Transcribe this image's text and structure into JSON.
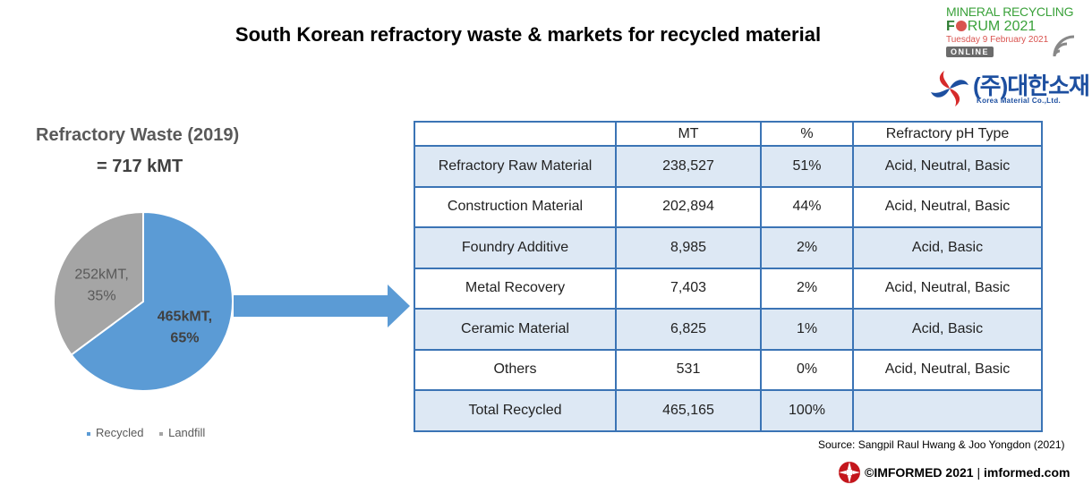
{
  "title": "South Korean refractory waste & markets for recycled material",
  "logos": {
    "forum_line1": "MINERAL RECYCLING",
    "forum_line2_a": "F",
    "forum_line2_b": "RUM 2021",
    "forum_date": "Tuesday 9 February 2021",
    "forum_online": "ONLINE",
    "company_korean": "(주)대한소재",
    "company_english": "Korea Material Co.,Ltd."
  },
  "chart_data": {
    "type": "pie",
    "title": "Refractory Waste (2019)",
    "subtitle": "= 717 kMT",
    "slices": [
      {
        "name": "Recycled",
        "value": 465,
        "unit": "kMT",
        "percent": 65,
        "label_line1": "465kMT,",
        "label_line2": "65%",
        "color": "#5b9bd5"
      },
      {
        "name": "Landfill",
        "value": 252,
        "unit": "kMT",
        "percent": 35,
        "label_line1": "252kMT,",
        "label_line2": "35%",
        "color": "#a5a5a5"
      }
    ],
    "legend": [
      "Recycled",
      "Landfill"
    ],
    "legend_position": "bottom"
  },
  "table": {
    "headers": [
      "",
      "MT",
      "%",
      "Refractory pH Type"
    ],
    "rows": [
      [
        "Refractory Raw Material",
        "238,527",
        "51%",
        "Acid, Neutral, Basic"
      ],
      [
        "Construction Material",
        "202,894",
        "44%",
        "Acid, Neutral, Basic"
      ],
      [
        "Foundry Additive",
        "8,985",
        "2%",
        "Acid, Basic"
      ],
      [
        "Metal Recovery",
        "7,403",
        "2%",
        "Acid, Neutral, Basic"
      ],
      [
        "Ceramic Material",
        "6,825",
        "1%",
        "Acid, Basic"
      ],
      [
        "Others",
        "531",
        "0%",
        "Acid, Neutral, Basic"
      ],
      [
        "Total Recycled",
        "465,165",
        "100%",
        ""
      ]
    ]
  },
  "source": "Source: Sangpil Raul Hwang & Joo Yongdon (2021)",
  "footer": {
    "copyright": "©IMFORMED 2021",
    "separator": " | ",
    "site": "imformed.com"
  },
  "colors": {
    "recycled": "#5b9bd5",
    "landfill": "#a5a5a5",
    "table_border": "#3b74b5",
    "table_band": "#dde8f4",
    "arrow": "#5b9bd5"
  }
}
